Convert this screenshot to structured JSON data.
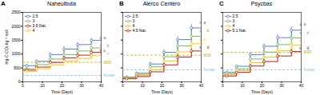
{
  "chart_data": [
    {
      "type": "line",
      "title": "Naheulbuta",
      "panel_label": "A",
      "xlabel": "Time (Days)",
      "ylabel": "mg-C-CO₂ kg⁻¹ soil",
      "x": [
        2,
        7,
        14,
        21,
        28,
        35,
        40
      ],
      "series": [
        {
          "name": "2.5",
          "color": "#4472C4",
          "values": [
            580,
            740,
            980,
            1180,
            1340,
            1490,
            1570
          ],
          "errors": [
            50,
            55,
            65,
            75,
            80,
            85,
            90
          ],
          "end_label": "a"
        },
        {
          "name": "3",
          "color": "#70AD47",
          "values": [
            470,
            620,
            820,
            980,
            1110,
            1220,
            1310
          ],
          "errors": [
            40,
            48,
            58,
            65,
            70,
            75,
            78
          ],
          "end_label": "b"
        },
        {
          "name": "3.6 Nat.",
          "color": "#C00000",
          "values": [
            420,
            530,
            700,
            860,
            960,
            1060,
            1130
          ],
          "errors": [
            35,
            42,
            50,
            58,
            63,
            68,
            72
          ],
          "end_label": "c"
        },
        {
          "name": "4",
          "color": "#FFC000",
          "values": [
            370,
            470,
            610,
            740,
            840,
            940,
            1010
          ],
          "errors": [
            28,
            36,
            44,
            52,
            57,
            62,
            66
          ],
          "end_label": "d"
        }
      ],
      "reference_lines": [
        {
          "name": "WSF",
          "value": 700,
          "color": "#CCAA00",
          "line_style": "dashed"
        },
        {
          "name": "Fontan",
          "value": 230,
          "color": "#7FBBDD",
          "line_style": "dashed"
        }
      ],
      "xlim": [
        0,
        40
      ],
      "xticks": [
        0,
        10,
        20,
        30,
        40
      ],
      "ylim": [
        0,
        2500
      ],
      "yticks": [
        0,
        500,
        1000,
        1500,
        2000,
        2500
      ],
      "legend": "upper left",
      "marker": "circle",
      "line_style": "step"
    },
    {
      "type": "line",
      "title": "Alerco Centero",
      "panel_label": "B",
      "xlabel": "Time (Days)",
      "x": [
        2,
        7,
        14,
        21,
        28,
        35,
        40
      ],
      "series": [
        {
          "name": "2.5",
          "color": "#4472C4",
          "values": [
            170,
            310,
            640,
            1060,
            1520,
            1940,
            2130
          ],
          "errors": [
            30,
            45,
            75,
            95,
            115,
            135,
            145
          ],
          "end_label": "a"
        },
        {
          "name": "3",
          "color": "#70AD47",
          "values": [
            150,
            270,
            540,
            900,
            1290,
            1640,
            1830
          ],
          "errors": [
            25,
            38,
            65,
            82,
            102,
            118,
            128
          ],
          "end_label": "b"
        },
        {
          "name": "4",
          "color": "#FFC000",
          "values": [
            130,
            230,
            440,
            750,
            1080,
            1370,
            1520
          ],
          "errors": [
            20,
            32,
            55,
            72,
            92,
            105,
            112
          ],
          "end_label": "c"
        },
        {
          "name": "4.5 Nat.",
          "color": "#C00000",
          "values": [
            110,
            190,
            360,
            610,
            890,
            1110,
            1240
          ],
          "errors": [
            15,
            28,
            45,
            60,
            78,
            92,
            98
          ],
          "end_label": "d"
        }
      ],
      "reference_lines": [
        {
          "name": "WSF",
          "value": 960,
          "color": "#CCAA00",
          "line_style": "dashed"
        },
        {
          "name": "Fontan",
          "value": 430,
          "color": "#7FBBDD",
          "line_style": "dashed"
        }
      ],
      "xlim": [
        0,
        40
      ],
      "xticks": [
        0,
        10,
        20,
        30,
        40
      ],
      "ylim": [
        0,
        2500
      ],
      "yticks": [
        0,
        500,
        1000,
        1500,
        2000,
        2500
      ],
      "tick_labels": "x",
      "legend": "upper left",
      "marker": "circle",
      "line_style": "step"
    },
    {
      "type": "line",
      "title": "Psycbas",
      "panel_label": "C",
      "xlabel": "Time (Days)",
      "x": [
        2,
        7,
        14,
        21,
        28,
        35,
        40
      ],
      "series": [
        {
          "name": "2.5",
          "color": "#4472C4",
          "values": [
            340,
            560,
            980,
            1280,
            1590,
            1860,
            2060
          ],
          "errors": [
            38,
            52,
            78,
            95,
            112,
            125,
            135
          ],
          "end_label": "a"
        },
        {
          "name": "3",
          "color": "#70AD47",
          "values": [
            290,
            470,
            820,
            1070,
            1340,
            1580,
            1750
          ],
          "errors": [
            32,
            45,
            67,
            82,
            97,
            112,
            118
          ],
          "end_label": "b"
        },
        {
          "name": "4",
          "color": "#FFC000",
          "values": [
            250,
            400,
            690,
            890,
            1120,
            1320,
            1470
          ],
          "errors": [
            26,
            38,
            57,
            72,
            87,
            97,
            107
          ],
          "end_label": "c"
        },
        {
          "name": "5.1 Nat.",
          "color": "#C00000",
          "values": [
            210,
            340,
            570,
            730,
            930,
            1090,
            1210
          ],
          "errors": [
            20,
            32,
            48,
            62,
            76,
            87,
            92
          ],
          "end_label": "d"
        }
      ],
      "reference_lines": [
        {
          "name": "WSF",
          "value": 1060,
          "color": "#CCAA00",
          "line_style": "dashed"
        },
        {
          "name": "Fontan",
          "value": 430,
          "color": "#7FBBDD",
          "line_style": "dashed"
        }
      ],
      "xlim": [
        0,
        40
      ],
      "xticks": [
        0,
        10,
        20,
        30,
        40
      ],
      "ylim": [
        0,
        2500
      ],
      "yticks": [
        0,
        500,
        1000,
        1500,
        2000,
        2500
      ],
      "tick_labels": "x",
      "legend": "upper left",
      "marker": "circle",
      "line_style": "step"
    }
  ]
}
